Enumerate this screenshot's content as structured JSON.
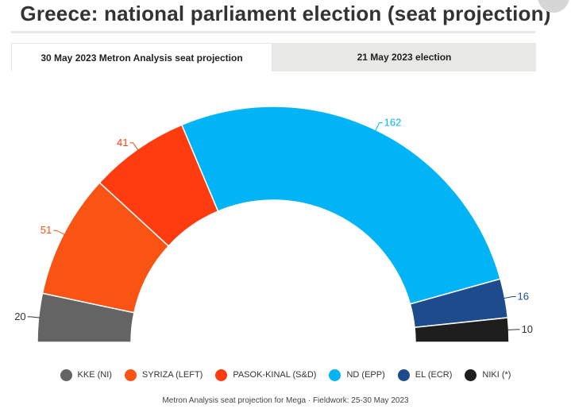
{
  "header": {
    "title": "Greece: national parliament election (seat projection)"
  },
  "tabs": [
    {
      "label": "30 May 2023 Metron Analysis seat projection",
      "active": true
    },
    {
      "label": "21 May 2023 election",
      "active": false
    }
  ],
  "chart_data": {
    "type": "pie",
    "variant": "parliament-semicircle",
    "title": "Greece: national parliament election (seat projection)",
    "total_seats": 300,
    "parties": [
      {
        "name": "KKE (NI)",
        "seats": 20,
        "color": "#646464"
      },
      {
        "name": "SYRIZA (LEFT)",
        "seats": 51,
        "color": "#fa5414"
      },
      {
        "name": "PASOK-KINAL (S&D)",
        "seats": 41,
        "color": "#ff3c0f"
      },
      {
        "name": "ND (EPP)",
        "seats": 162,
        "color": "#00b4f5"
      },
      {
        "name": "EL (ECR)",
        "seats": 16,
        "color": "#1e4b8c"
      },
      {
        "name": "NIKI (*)",
        "seats": 10,
        "color": "#1e1e1e"
      }
    ],
    "legend_position": "bottom"
  },
  "footer": {
    "note": "Metron Analysis seat projection for Mega · Fieldwork: 25-30 May 2023"
  }
}
